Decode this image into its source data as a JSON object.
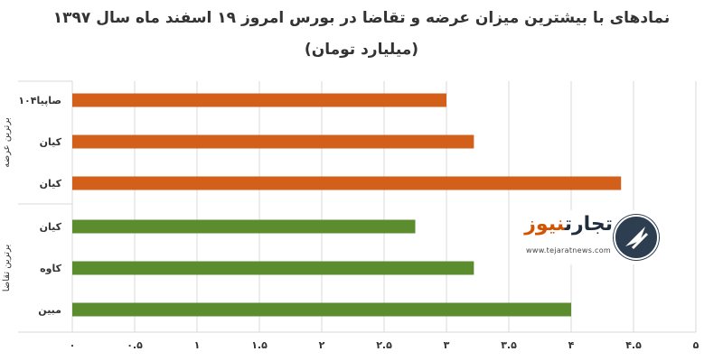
{
  "chart_data": {
    "type": "bar",
    "orientation": "horizontal",
    "title": "نمادهای با بیشترین میزان عرضه و تقاضا در بورس امروز ۱۹ اسفند ماه سال ۱۳۹۷",
    "subtitle": "(میلیارد تومان)",
    "xlim": [
      0,
      5
    ],
    "x_ticks": [
      "۰",
      "۰.۵",
      "۱",
      "۱.۵",
      "۲",
      "۲.۵",
      "۳",
      "۳.۵",
      "۴",
      "۴.۵",
      "۵"
    ],
    "grid": "vertical",
    "groups": [
      {
        "name": "برترین عرضه",
        "color": "#D2601A",
        "categories": [
          "صاپیا۱۰۴",
          "کیان",
          "کیان"
        ],
        "values": [
          3.0,
          3.22,
          4.4
        ]
      },
      {
        "name": "برترین تقاضا",
        "color": "#5B8C2E",
        "categories": [
          "کیان",
          "کاوه",
          "مبین"
        ],
        "values": [
          2.75,
          3.22,
          4.0
        ]
      }
    ]
  },
  "watermark": {
    "name_part1": "تجارت",
    "name_part2": "نیوز",
    "url": "www.tejaratnews.com",
    "brand_color": "#2c3e50",
    "accent_color": "#d35400"
  }
}
